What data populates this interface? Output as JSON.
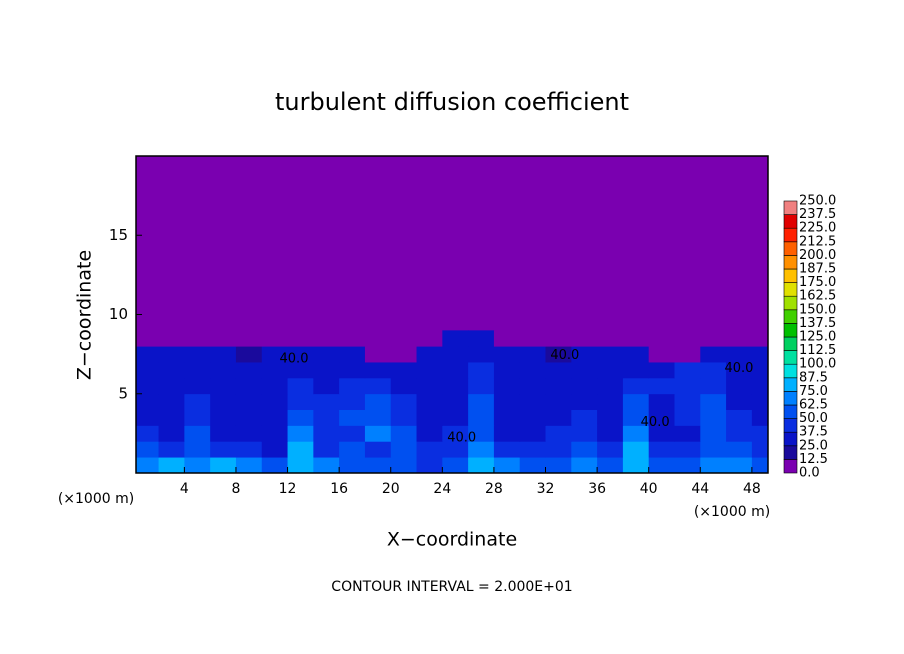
{
  "chart_data": {
    "type": "contour",
    "title": "turbulent diffusion coefficient",
    "x_label": "X−coordinate",
    "y_label": "Z−coordinate",
    "x_unit_left": "(×1000 m)",
    "x_unit_right": "(×1000 m)",
    "footnote": "CONTOUR INTERVAL = 2.000E+01",
    "xlim": [
      0.25,
      49.25
    ],
    "ylim": [
      0,
      20
    ],
    "xticks": [
      4,
      8,
      12,
      16,
      20,
      24,
      28,
      32,
      36,
      40,
      44,
      48
    ],
    "yticks": [
      5,
      10,
      15
    ],
    "field": {
      "x_edges": [
        0.25,
        2,
        4,
        6,
        8,
        10,
        12,
        14,
        16,
        18,
        20,
        22,
        24,
        26,
        28,
        30,
        32,
        34,
        36,
        38,
        40,
        42,
        44,
        46,
        48,
        49.25
      ],
      "z_edges": [
        0,
        1,
        2,
        3,
        4,
        5,
        6,
        7,
        8,
        9
      ],
      "values": [
        [
          70,
          75,
          65,
          80,
          70,
          60,
          85,
          70,
          60,
          55,
          60,
          45,
          60,
          75,
          70,
          60,
          55,
          65,
          60,
          85,
          60,
          55,
          65,
          70,
          60
        ],
        [
          55,
          40,
          60,
          45,
          40,
          35,
          80,
          45,
          50,
          45,
          55,
          40,
          45,
          70,
          40,
          40,
          45,
          55,
          40,
          80,
          45,
          40,
          60,
          55,
          45
        ],
        [
          40,
          35,
          55,
          35,
          35,
          35,
          65,
          40,
          45,
          70,
          50,
          35,
          40,
          60,
          35,
          35,
          40,
          45,
          35,
          70,
          35,
          35,
          60,
          45,
          40
        ],
        [
          35,
          30,
          45,
          30,
          30,
          30,
          50,
          40,
          55,
          60,
          45,
          30,
          35,
          55,
          30,
          30,
          35,
          40,
          30,
          60,
          30,
          45,
          55,
          40,
          35
        ],
        [
          35,
          30,
          40,
          30,
          30,
          35,
          45,
          40,
          45,
          50,
          40,
          30,
          30,
          50,
          30,
          30,
          30,
          35,
          30,
          50,
          35,
          40,
          50,
          35,
          30
        ],
        [
          35,
          30,
          30,
          35,
          30,
          35,
          40,
          35,
          40,
          45,
          35,
          30,
          30,
          45,
          30,
          30,
          30,
          35,
          35,
          40,
          40,
          45,
          45,
          30,
          30
        ],
        [
          30,
          30,
          30,
          30,
          30,
          30,
          35,
          30,
          35,
          35,
          30,
          30,
          30,
          40,
          30,
          30,
          30,
          30,
          30,
          35,
          35,
          40,
          40,
          30,
          30
        ],
        [
          30,
          30,
          30,
          30,
          20,
          25,
          30,
          30,
          30,
          0,
          0,
          25,
          30,
          30,
          30,
          25,
          20,
          30,
          30,
          30,
          0,
          0,
          25,
          30,
          30
        ],
        [
          0,
          0,
          0,
          0,
          0,
          0,
          0,
          0,
          0,
          0,
          0,
          0,
          25,
          30,
          0,
          0,
          0,
          0,
          0,
          0,
          0,
          0,
          0,
          0,
          0
        ]
      ]
    },
    "contour_labels": [
      {
        "label": "40.0",
        "x": 12.5,
        "y": 7.2
      },
      {
        "label": "40.0",
        "x": 33.5,
        "y": 7.4
      },
      {
        "label": "40.0",
        "x": 47,
        "y": 6.6
      },
      {
        "label": "40.0",
        "x": 25.5,
        "y": 2.2
      },
      {
        "label": "40.0",
        "x": 40.5,
        "y": 3.2
      }
    ],
    "colorbar": {
      "levels": [
        {
          "value": 0,
          "label": "0.0"
        },
        12.5,
        {
          "value": 25,
          "label": "25.0"
        },
        37.5,
        {
          "value": 50,
          "label": "50.0"
        },
        62.5,
        {
          "value": 75,
          "label": "75.0"
        },
        87.5,
        {
          "value": 100,
          "label": "100.0"
        },
        112.5,
        {
          "value": 125,
          "label": "125.0"
        },
        137.5,
        {
          "value": 150,
          "label": "150.0"
        },
        162.5,
        {
          "value": 175,
          "label": "175.0"
        },
        187.5,
        {
          "value": 200,
          "label": "200.0"
        },
        212.5,
        {
          "value": 225,
          "label": "225.0"
        },
        237.5,
        {
          "value": 250,
          "label": "250.0"
        }
      ],
      "colors": [
        "#7a00b0",
        "#1a0a9c",
        "#0a14c8",
        "#0a2ee0",
        "#0050f0",
        "#0080ff",
        "#00b0ff",
        "#00e0e0",
        "#00e0a0",
        "#00d060",
        "#00c000",
        "#40d000",
        "#a0e000",
        "#e0e000",
        "#ffc000",
        "#ff9000",
        "#ff6000",
        "#ff2000",
        "#e00000",
        "#f08080"
      ]
    }
  }
}
